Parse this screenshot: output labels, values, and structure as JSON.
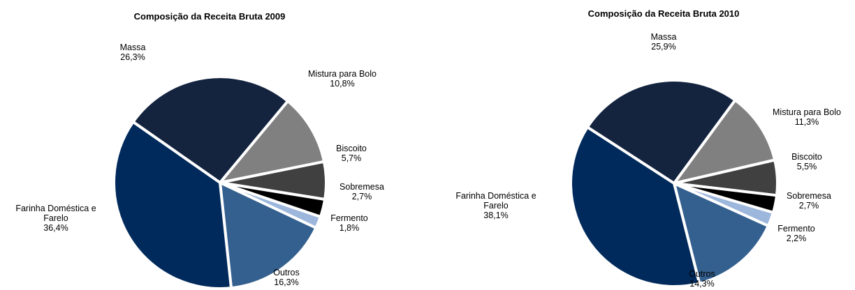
{
  "chart_data": [
    {
      "type": "pie",
      "title": "Composição da Receita Bruta 2009",
      "categories": [
        "Massa",
        "Mistura para Bolo",
        "Biscoito",
        "Sobremesa",
        "Fermento",
        "Outros",
        "Farinha Doméstica e Farelo"
      ],
      "values": [
        26.3,
        10.8,
        5.7,
        2.7,
        1.8,
        16.3,
        36.4
      ],
      "value_labels": [
        "26,3%",
        "10,8%",
        "5,7%",
        "2,7%",
        "1,8%",
        "16,3%",
        "36,4%"
      ],
      "colors": [
        "#14243f",
        "#808080",
        "#404040",
        "#000000",
        "#9db7dc",
        "#34608f",
        "#002a5c"
      ]
    },
    {
      "type": "pie",
      "title": "Composição da Receita Bruta 2010",
      "categories": [
        "Massa",
        "Mistura para Bolo",
        "Biscoito",
        "Sobremesa",
        "Fermento",
        "Outros",
        "Farinha Doméstica e Farelo"
      ],
      "values": [
        25.9,
        11.3,
        5.5,
        2.7,
        2.2,
        14.3,
        38.1
      ],
      "value_labels": [
        "25,9%",
        "11,3%",
        "5,5%",
        "2,7%",
        "2,2%",
        "14,3%",
        "38,1%"
      ],
      "colors": [
        "#14243f",
        "#808080",
        "#404040",
        "#000000",
        "#9db7dc",
        "#34608f",
        "#002a5c"
      ]
    }
  ]
}
